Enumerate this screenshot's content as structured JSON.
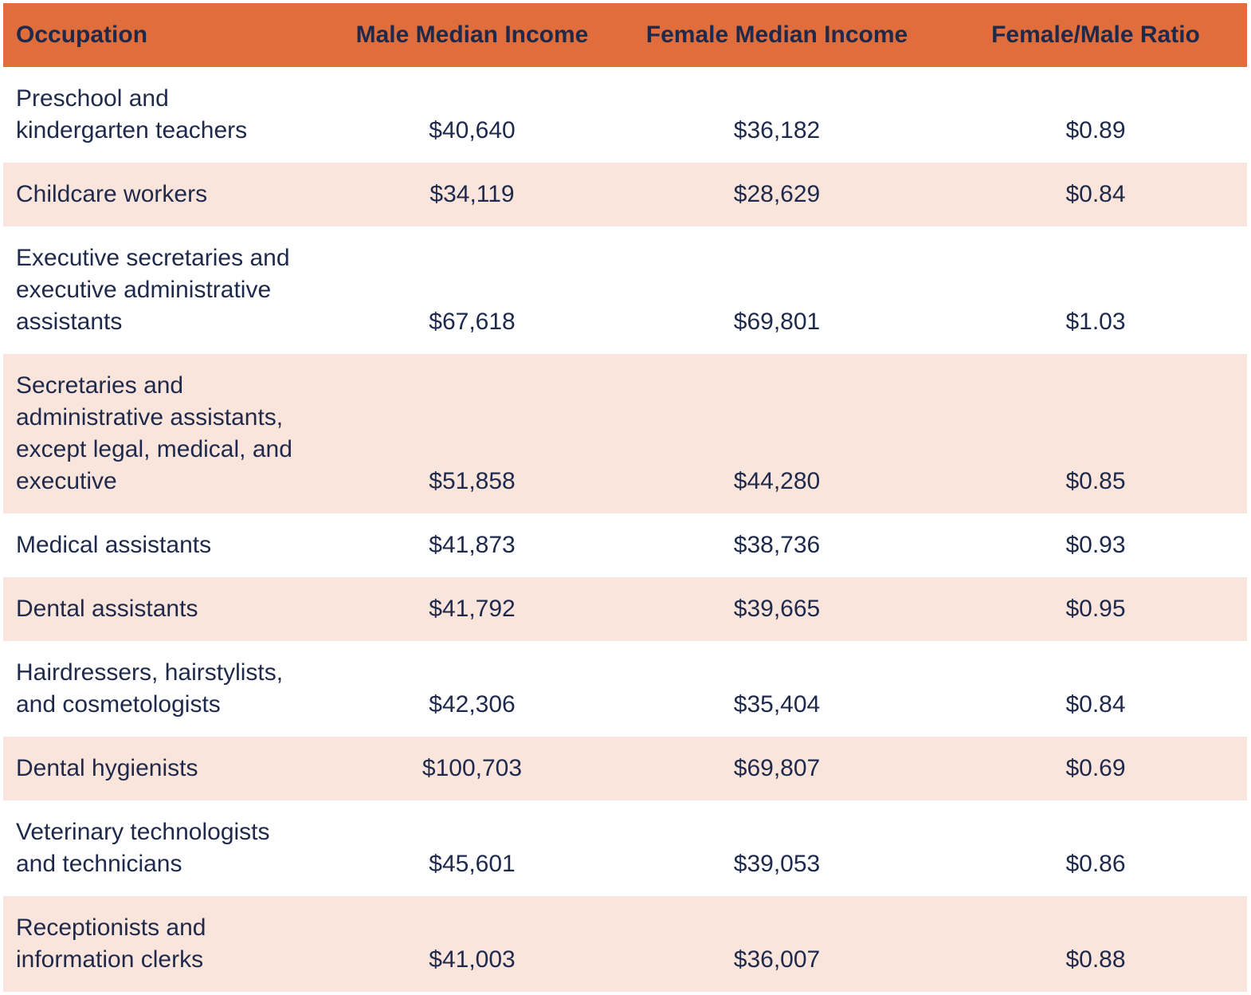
{
  "table": {
    "columns": [
      "Occupation",
      "Male Median Income",
      "Female Median Income",
      "Female/Male Ratio"
    ],
    "rows": [
      {
        "occupation": "Preschool and\nkindergarten teachers",
        "male": "$40,640",
        "female": "$36,182",
        "ratio": "$0.89"
      },
      {
        "occupation": "Childcare workers",
        "male": "$34,119",
        "female": "$28,629",
        "ratio": "$0.84"
      },
      {
        "occupation": "Executive secretaries and\nexecutive administrative\nassistants",
        "male": "$67,618",
        "female": "$69,801",
        "ratio": "$1.03"
      },
      {
        "occupation": "Secretaries and\nadministrative assistants,\nexcept legal, medical, and\nexecutive",
        "male": "$51,858",
        "female": "$44,280",
        "ratio": "$0.85"
      },
      {
        "occupation": "Medical assistants",
        "male": "$41,873",
        "female": "$38,736",
        "ratio": "$0.93"
      },
      {
        "occupation": "Dental assistants",
        "male": "$41,792",
        "female": "$39,665",
        "ratio": "$0.95"
      },
      {
        "occupation": "Hairdressers, hairstylists,\nand cosmetologists",
        "male": "$42,306",
        "female": "$35,404",
        "ratio": "$0.84"
      },
      {
        "occupation": "Dental hygienists",
        "male": "$100,703",
        "female": "$69,807",
        "ratio": "$0.69"
      },
      {
        "occupation": "Veterinary technologists\nand technicians",
        "male": "$45,601",
        "female": "$39,053",
        "ratio": "$0.86"
      },
      {
        "occupation": "Receptionists and\ninformation clerks",
        "male": "$41,003",
        "female": "$36,007",
        "ratio": "$0.88"
      }
    ]
  },
  "colors": {
    "header_bg": "#E06E3C",
    "row_bg": "#FFFFFF",
    "row_alt_bg": "#FAE5DC",
    "text": "#1E294B"
  },
  "chart_data": {
    "type": "table",
    "title": "",
    "columns": [
      "Occupation",
      "Male Median Income",
      "Female Median Income",
      "Female/Male Ratio"
    ],
    "rows": [
      [
        "Preschool and kindergarten teachers",
        40640,
        36182,
        0.89
      ],
      [
        "Childcare workers",
        34119,
        28629,
        0.84
      ],
      [
        "Executive secretaries and executive administrative assistants",
        67618,
        69801,
        1.03
      ],
      [
        "Secretaries and administrative assistants, except legal, medical, and executive",
        51858,
        44280,
        0.85
      ],
      [
        "Medical assistants",
        41873,
        38736,
        0.93
      ],
      [
        "Dental assistants",
        41792,
        39665,
        0.95
      ],
      [
        "Hairdressers, hairstylists, and cosmetologists",
        42306,
        35404,
        0.84
      ],
      [
        "Dental hygienists",
        100703,
        69807,
        0.69
      ],
      [
        "Veterinary technologists and technicians",
        45601,
        39053,
        0.86
      ],
      [
        "Receptionists and information clerks",
        41003,
        36007,
        0.88
      ]
    ],
    "layout_hints": {
      "header_style": "orange band, bold navy text",
      "row_striping": "odd rows white, even rows light peach",
      "numeric_columns_alignment": "center",
      "cell_vertical_alignment": "bottom"
    }
  }
}
